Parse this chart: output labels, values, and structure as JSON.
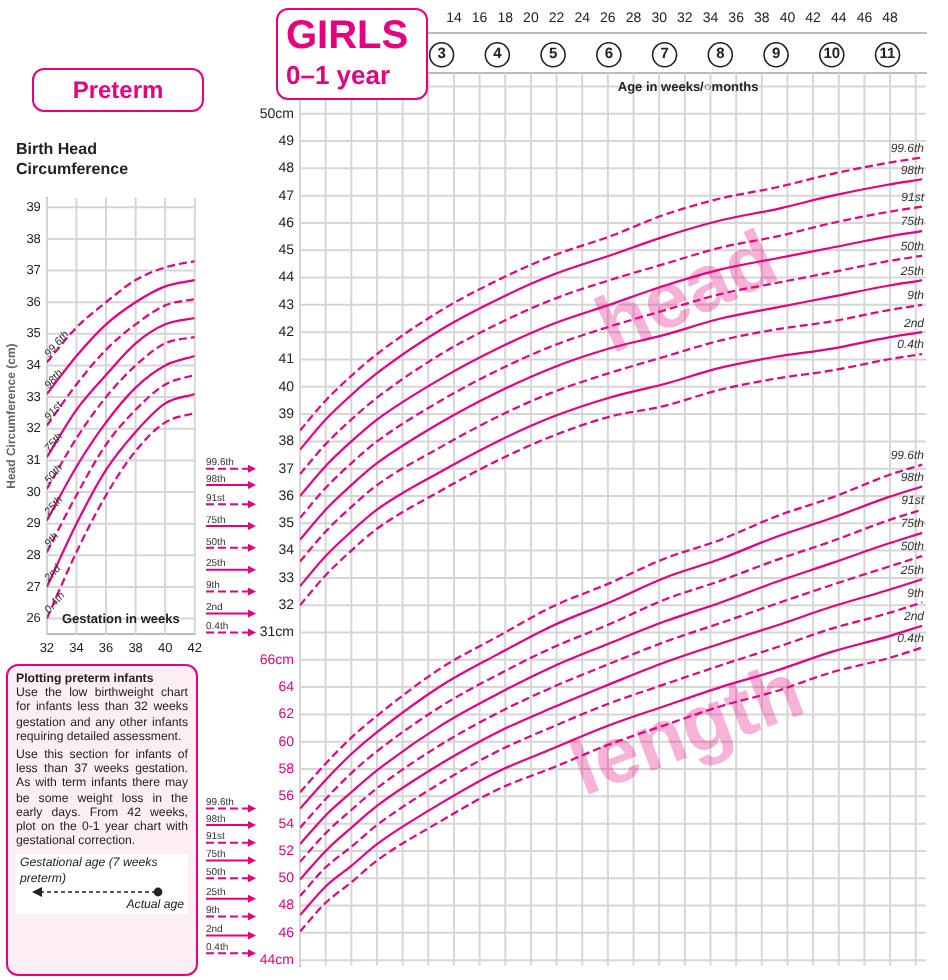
{
  "chart_data": [
    {
      "type": "line",
      "title": "Preterm",
      "subtitle": "Birth Head Circumference",
      "xlabel": "Gestation in weeks",
      "ylabel": "Head Circumference (cm)",
      "x": [
        32,
        34,
        36,
        38,
        40,
        42
      ],
      "xlim": [
        32,
        42
      ],
      "ylim": [
        25.5,
        39.3
      ],
      "xticks": [
        32,
        34,
        36,
        38,
        40,
        42
      ],
      "yticks": [
        26,
        27,
        28,
        29,
        30,
        31,
        32,
        33,
        34,
        35,
        36,
        37,
        38,
        39
      ],
      "grid": true,
      "series": [
        {
          "name": "99.6th",
          "color": "#e5007d",
          "line_style": "dashed",
          "values": [
            34.1,
            35.2,
            36.0,
            36.7,
            37.1,
            37.3
          ]
        },
        {
          "name": "98th",
          "color": "#e5007d",
          "line_style": "solid",
          "values": [
            33.1,
            34.3,
            35.3,
            36.0,
            36.5,
            36.7
          ]
        },
        {
          "name": "91st",
          "color": "#e5007d",
          "line_style": "dashed",
          "values": [
            32.1,
            33.4,
            34.5,
            35.3,
            35.9,
            36.1
          ]
        },
        {
          "name": "75th",
          "color": "#e5007d",
          "line_style": "solid",
          "values": [
            31.1,
            32.6,
            33.7,
            34.7,
            35.3,
            35.5
          ]
        },
        {
          "name": "50th",
          "color": "#e5007d",
          "line_style": "dashed",
          "values": [
            30.1,
            31.7,
            33.0,
            34.0,
            34.7,
            34.9
          ]
        },
        {
          "name": "25th",
          "color": "#e5007d",
          "line_style": "solid",
          "values": [
            29.1,
            30.8,
            32.2,
            33.3,
            34.0,
            34.3
          ]
        },
        {
          "name": "9th",
          "color": "#e5007d",
          "line_style": "dashed",
          "values": [
            28.1,
            29.9,
            31.5,
            32.6,
            33.4,
            33.7
          ]
        },
        {
          "name": "2nd",
          "color": "#e5007d",
          "line_style": "solid",
          "values": [
            27.0,
            29.0,
            30.7,
            31.9,
            32.8,
            33.1
          ]
        },
        {
          "name": "0.4th",
          "color": "#e5007d",
          "line_style": "dashed",
          "values": [
            26.0,
            28.1,
            29.9,
            31.3,
            32.2,
            32.5
          ]
        }
      ],
      "annotations": [
        "Plotting preterm infants",
        "Use the low birthweight chart for infants less than 32 weeks gestation and any other infants requiring detailed assessment.",
        "Use this section for infants of less than 37 weeks gestation. As with term infants there may be some weight loss in the early days. From 42 weeks, plot on the 0-1 year chart with gestational correction.",
        "Gestational age (7 weeks preterm)",
        "Actual age"
      ]
    },
    {
      "type": "line",
      "title": "GIRLS",
      "subtitle": "0–1 year",
      "xlabel": "Age in weeks/○months",
      "x": [
        2,
        4,
        6,
        8,
        13,
        17.4,
        21.7,
        26.1,
        30.4,
        34.8,
        39.1,
        43.5,
        47.8,
        50.5
      ],
      "xlim": [
        2,
        50.8
      ],
      "x2lim": [
        0.46,
        11.69
      ],
      "ylim": [
        18.8,
        51.5
      ],
      "y2lim": [
        43.6,
        109
      ],
      "grid": true,
      "xticks": [
        14,
        16,
        18,
        20,
        22,
        24,
        26,
        28,
        30,
        32,
        34,
        36,
        38,
        40,
        42,
        44,
        46,
        48
      ],
      "x2ticks": [
        3,
        4,
        5,
        6,
        7,
        8,
        9,
        10,
        11
      ],
      "yticks": [
        {
          "value": 31,
          "label": "31cm"
        },
        32,
        33,
        34,
        35,
        36,
        37,
        38,
        39,
        40,
        41,
        42,
        43,
        44,
        45,
        46,
        47,
        48,
        49,
        {
          "value": 50,
          "label": "50cm"
        }
      ],
      "y2ticks": [
        {
          "value": 44,
          "label": "44cm"
        },
        46,
        48,
        50,
        52,
        54,
        56,
        58,
        60,
        62,
        64,
        {
          "value": 66,
          "label": "66cm"
        }
      ],
      "series": [
        {
          "name": "99.6th",
          "color": "#e5007d",
          "line_style": "dashed",
          "values": [
            38.4,
            39.5,
            40.4,
            41.2,
            42.8,
            43.9,
            44.8,
            45.5,
            46.3,
            46.9,
            47.3,
            47.8,
            48.2,
            48.4
          ]
        },
        {
          "name": "98th",
          "color": "#e5007d",
          "line_style": "solid",
          "values": [
            37.7,
            38.8,
            39.7,
            40.5,
            42.1,
            43.2,
            44.1,
            44.8,
            45.5,
            46.1,
            46.5,
            47.0,
            47.4,
            47.6
          ]
        },
        {
          "name": "91st",
          "color": "#e5007d",
          "line_style": "dashed",
          "values": [
            36.8,
            37.9,
            38.8,
            39.6,
            41.2,
            42.3,
            43.2,
            43.9,
            44.5,
            45.1,
            45.5,
            46.0,
            46.4,
            46.6
          ]
        },
        {
          "name": "75th",
          "color": "#e5007d",
          "line_style": "solid",
          "values": [
            36.0,
            37.1,
            38.0,
            38.8,
            40.3,
            41.4,
            42.3,
            43.0,
            43.7,
            44.3,
            44.7,
            45.1,
            45.5,
            45.7
          ]
        },
        {
          "name": "50th",
          "color": "#e5007d",
          "line_style": "dashed",
          "values": [
            35.2,
            36.3,
            37.2,
            38.0,
            39.5,
            40.6,
            41.5,
            42.2,
            42.8,
            43.4,
            43.8,
            44.2,
            44.6,
            44.8
          ]
        },
        {
          "name": "25th",
          "color": "#e5007d",
          "line_style": "solid",
          "values": [
            34.4,
            35.5,
            36.4,
            37.2,
            38.7,
            39.8,
            40.7,
            41.4,
            41.9,
            42.5,
            42.9,
            43.3,
            43.7,
            43.9
          ]
        },
        {
          "name": "9th",
          "color": "#e5007d",
          "line_style": "dashed",
          "values": [
            33.6,
            34.7,
            35.6,
            36.4,
            37.8,
            38.9,
            39.8,
            40.5,
            41.1,
            41.7,
            42.1,
            42.4,
            42.8,
            43.0
          ]
        },
        {
          "name": "2nd",
          "color": "#e5007d",
          "line_style": "solid",
          "values": [
            32.7,
            33.8,
            34.7,
            35.5,
            36.9,
            38.0,
            38.9,
            39.6,
            40.1,
            40.7,
            41.1,
            41.4,
            41.8,
            42.0
          ]
        },
        {
          "name": "0.4th",
          "color": "#e5007d",
          "line_style": "dashed",
          "values": [
            32.0,
            33.1,
            34.0,
            34.8,
            36.2,
            37.3,
            38.2,
            38.9,
            39.3,
            39.9,
            40.3,
            40.6,
            41.0,
            41.2
          ]
        },
        {
          "name": "99.6th",
          "color": "#e5007d",
          "line_style": "dashed",
          "axis": "y2",
          "values": [
            56.3,
            58.4,
            60.3,
            61.9,
            65.4,
            67.7,
            69.9,
            71.6,
            73.4,
            74.8,
            76.5,
            77.9,
            79.5,
            80.3
          ]
        },
        {
          "name": "98th",
          "color": "#e5007d",
          "line_style": "solid",
          "axis": "y2",
          "values": [
            55.1,
            57.2,
            59.1,
            60.7,
            64.1,
            66.4,
            68.5,
            70.2,
            72.0,
            73.4,
            75.0,
            76.4,
            77.9,
            78.7
          ]
        },
        {
          "name": "91st",
          "color": "#e5007d",
          "line_style": "dashed",
          "axis": "y2",
          "values": [
            53.7,
            55.8,
            57.7,
            59.3,
            62.6,
            64.9,
            66.9,
            68.6,
            70.4,
            71.8,
            73.3,
            74.7,
            76.2,
            77.0
          ]
        },
        {
          "name": "75th",
          "color": "#e5007d",
          "line_style": "solid",
          "axis": "y2",
          "values": [
            52.5,
            54.6,
            56.3,
            57.9,
            61.2,
            63.5,
            65.5,
            67.2,
            68.8,
            70.2,
            71.7,
            73.1,
            74.5,
            75.3
          ]
        },
        {
          "name": "50th",
          "color": "#e5007d",
          "line_style": "dashed",
          "axis": "y2",
          "values": [
            51.2,
            53.3,
            55.0,
            56.6,
            59.8,
            62.1,
            64.0,
            65.7,
            67.3,
            68.7,
            70.1,
            71.5,
            72.8,
            73.6
          ]
        },
        {
          "name": "25th",
          "color": "#e5007d",
          "line_style": "solid",
          "axis": "y2",
          "values": [
            49.9,
            52.0,
            53.7,
            55.3,
            58.4,
            60.7,
            62.5,
            64.2,
            65.8,
            67.2,
            68.5,
            69.9,
            71.1,
            71.9
          ]
        },
        {
          "name": "9th",
          "color": "#e5007d",
          "line_style": "dashed",
          "axis": "y2",
          "values": [
            48.7,
            50.8,
            52.3,
            53.9,
            57.0,
            59.3,
            61.1,
            62.8,
            64.2,
            65.6,
            66.9,
            68.3,
            69.4,
            70.2
          ]
        },
        {
          "name": "2nd",
          "color": "#e5007d",
          "line_style": "solid",
          "axis": "y2",
          "values": [
            47.3,
            49.4,
            50.9,
            52.5,
            55.5,
            57.8,
            59.5,
            61.2,
            62.6,
            64.0,
            65.2,
            66.6,
            67.7,
            68.5
          ]
        },
        {
          "name": "0.4th",
          "color": "#e5007d",
          "line_style": "dashed",
          "axis": "y2",
          "values": [
            46.1,
            48.2,
            49.7,
            51.3,
            54.2,
            56.5,
            58.1,
            59.8,
            61.2,
            62.6,
            63.7,
            65.1,
            66.1,
            66.9
          ]
        }
      ],
      "ref_lines": [
        {
          "axis": "y",
          "value": 37.0,
          "label": "99.6th",
          "line_style": "dashed"
        },
        {
          "axis": "y",
          "value": 36.4,
          "label": "98th",
          "line_style": "solid"
        },
        {
          "axis": "y",
          "value": 35.7,
          "label": "91st",
          "line_style": "dashed"
        },
        {
          "axis": "y",
          "value": 34.9,
          "label": "75th",
          "line_style": "solid"
        },
        {
          "axis": "y",
          "value": 34.1,
          "label": "50th",
          "line_style": "dashed"
        },
        {
          "axis": "y",
          "value": 33.3,
          "label": "25th",
          "line_style": "solid"
        },
        {
          "axis": "y",
          "value": 32.5,
          "label": "9th",
          "line_style": "dashed"
        },
        {
          "axis": "y",
          "value": 31.7,
          "label": "2nd",
          "line_style": "solid"
        },
        {
          "axis": "y",
          "value": 31.0,
          "label": "0.4th",
          "line_style": "dashed"
        },
        {
          "axis": "y2",
          "value": 55.1,
          "label": "99.6th",
          "line_style": "dashed"
        },
        {
          "axis": "y2",
          "value": 53.9,
          "label": "98th",
          "line_style": "solid"
        },
        {
          "axis": "y2",
          "value": 52.6,
          "label": "91st",
          "line_style": "dashed"
        },
        {
          "axis": "y2",
          "value": 51.3,
          "label": "75th",
          "line_style": "solid"
        },
        {
          "axis": "y2",
          "value": 50.0,
          "label": "50th",
          "line_style": "dashed"
        },
        {
          "axis": "y2",
          "value": 48.5,
          "label": "25th",
          "line_style": "solid"
        },
        {
          "axis": "y2",
          "value": 47.2,
          "label": "9th",
          "line_style": "dashed"
        },
        {
          "axis": "y2",
          "value": 45.8,
          "label": "2nd",
          "line_style": "solid"
        },
        {
          "axis": "y2",
          "value": 44.5,
          "label": "0.4th",
          "line_style": "dashed"
        }
      ],
      "annotations": [
        "head",
        "length"
      ]
    }
  ]
}
